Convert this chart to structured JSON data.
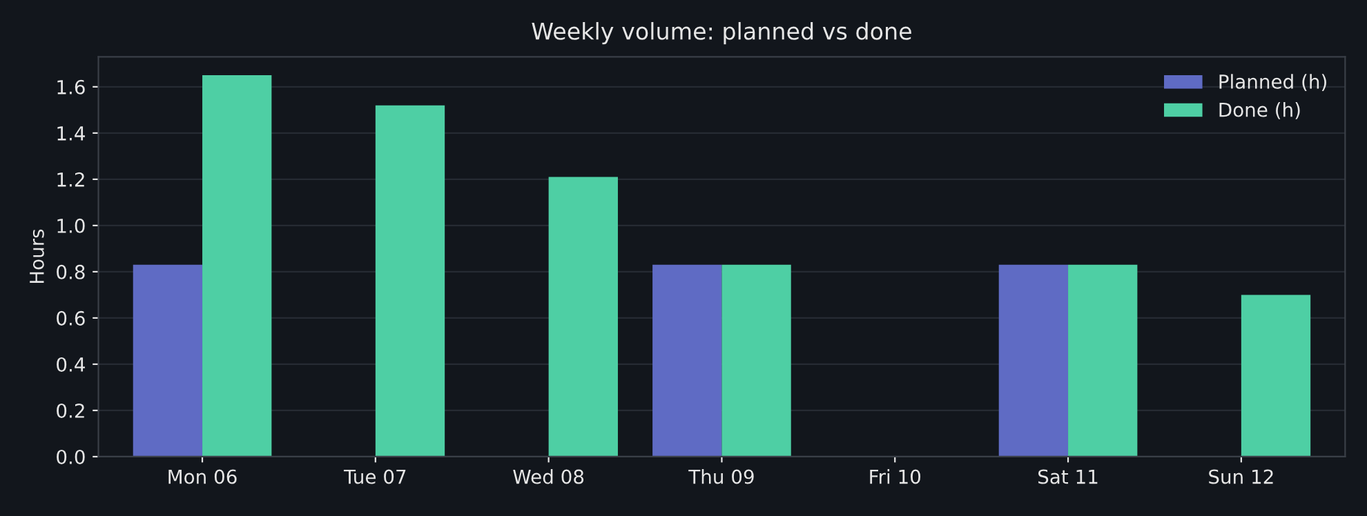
{
  "chart_data": {
    "type": "bar",
    "title": "Weekly volume: planned vs done",
    "ylabel": "Hours",
    "categories": [
      "Mon 06",
      "Tue 07",
      "Wed 08",
      "Thu 09",
      "Fri 10",
      "Sat 11",
      "Sun 12"
    ],
    "series": [
      {
        "name": "Planned (h)",
        "color": "#5f6bc4",
        "values": [
          0.83,
          0,
          0,
          0.83,
          0,
          0.83,
          0
        ]
      },
      {
        "name": "Done (h)",
        "color": "#4ecfa4",
        "values": [
          1.65,
          1.52,
          1.21,
          0.83,
          0,
          0.83,
          0.7
        ]
      }
    ],
    "ylim": [
      0,
      1.73
    ],
    "yticks": [
      {
        "value": 0,
        "label": "0.0"
      },
      {
        "value": 0.2,
        "label": "0.2"
      },
      {
        "value": 0.4,
        "label": "0.4"
      },
      {
        "value": 0.6,
        "label": "0.6"
      },
      {
        "value": 0.8,
        "label": "0.8"
      },
      {
        "value": 1.0,
        "label": "1.0"
      },
      {
        "value": 1.2,
        "label": "1.2"
      },
      {
        "value": 1.4,
        "label": "1.4"
      },
      {
        "value": 1.6,
        "label": "1.6"
      }
    ],
    "grid": "y",
    "legend": "top right"
  }
}
